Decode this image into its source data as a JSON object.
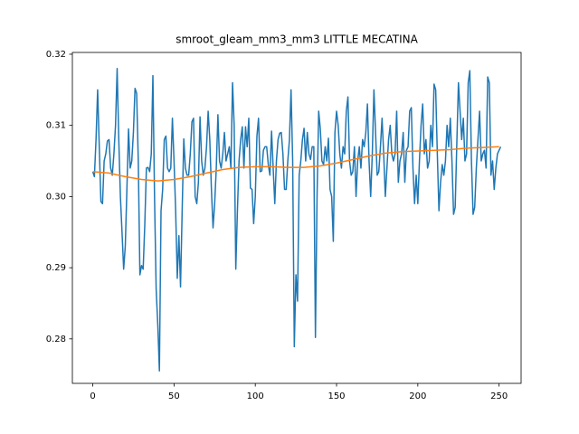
{
  "chart_data": {
    "type": "line",
    "title": "smroot_gleam_mm3_mm3 LITTLE MECATINA",
    "xlim": [
      -12.55,
      263.55
    ],
    "xticks": [
      0,
      50,
      100,
      150,
      200,
      250
    ],
    "ylim": [
      0.27375,
      0.32025
    ],
    "yticks": [
      0.28,
      0.29,
      {
        "value": 0.3,
        "label": "0.30"
      },
      0.31,
      0.32
    ],
    "series": [
      {
        "color": "#1f77b4",
        "values": [
          0.3035,
          0.3028,
          0.308,
          0.315,
          0.307,
          0.2993,
          0.299,
          0.305,
          0.306,
          0.3078,
          0.308,
          0.304,
          0.303,
          0.306,
          0.31,
          0.318,
          0.308,
          0.3,
          0.295,
          0.2898,
          0.293,
          0.301,
          0.3095,
          0.304,
          0.305,
          0.309,
          0.3152,
          0.3145,
          0.305,
          0.289,
          0.2903,
          0.2898,
          0.296,
          0.304,
          0.3041,
          0.3035,
          0.306,
          0.317,
          0.3,
          0.287,
          0.282,
          0.2755,
          0.298,
          0.301,
          0.308,
          0.3085,
          0.304,
          0.3035,
          0.304,
          0.311,
          0.305,
          0.298,
          0.2885,
          0.2945,
          0.2873,
          0.298,
          0.3081,
          0.304,
          0.303,
          0.303,
          0.306,
          0.3105,
          0.311,
          0.3,
          0.299,
          0.302,
          0.3112,
          0.305,
          0.303,
          0.304,
          0.307,
          0.312,
          0.308,
          0.301,
          0.2956,
          0.299,
          0.304,
          0.3115,
          0.305,
          0.304,
          0.306,
          0.309,
          0.305,
          0.306,
          0.307,
          0.304,
          0.316,
          0.31,
          0.2898,
          0.298,
          0.305,
          0.308,
          0.3098,
          0.304,
          0.3098,
          0.307,
          0.311,
          0.3012,
          0.301,
          0.2962,
          0.3,
          0.3085,
          0.311,
          0.3035,
          0.3036,
          0.3065,
          0.307,
          0.307,
          0.3045,
          0.303,
          0.3092,
          0.304,
          0.299,
          0.305,
          0.308,
          0.3089,
          0.309,
          0.306,
          0.301,
          0.301,
          0.305,
          0.308,
          0.315,
          0.305,
          0.2789,
          0.289,
          0.2853,
          0.303,
          0.305,
          0.308,
          0.3096,
          0.305,
          0.309,
          0.306,
          0.3052,
          0.307,
          0.307,
          0.2802,
          0.3,
          0.312,
          0.3095,
          0.305,
          0.3045,
          0.307,
          0.305,
          0.3082,
          0.301,
          0.3,
          0.2937,
          0.309,
          0.312,
          0.31,
          0.306,
          0.304,
          0.307,
          0.306,
          0.312,
          0.314,
          0.305,
          0.303,
          0.3035,
          0.307,
          0.3,
          0.305,
          0.307,
          0.304,
          0.308,
          0.307,
          0.309,
          0.313,
          0.305,
          0.3,
          0.306,
          0.315,
          0.309,
          0.303,
          0.3035,
          0.307,
          0.311,
          0.306,
          0.3,
          0.304,
          0.308,
          0.31,
          0.306,
          0.305,
          0.306,
          0.312,
          0.302,
          0.305,
          0.306,
          0.309,
          0.302,
          0.3065,
          0.307,
          0.312,
          0.3125,
          0.304,
          0.299,
          0.303,
          0.299,
          0.305,
          0.31,
          0.313,
          0.306,
          0.308,
          0.304,
          0.305,
          0.31,
          0.307,
          0.3158,
          0.315,
          0.306,
          0.298,
          0.302,
          0.3045,
          0.303,
          0.305,
          0.31,
          0.307,
          0.311,
          0.305,
          0.2975,
          0.2985,
          0.3075,
          0.316,
          0.312,
          0.308,
          0.311,
          0.305,
          0.306,
          0.316,
          0.3177,
          0.305,
          0.2975,
          0.2985,
          0.304,
          0.308,
          0.312,
          0.305,
          0.306,
          0.3065,
          0.304,
          0.3168,
          0.316,
          0.303,
          0.305,
          0.301,
          0.304,
          0.306,
          0.3065,
          0.307
        ]
      },
      {
        "color": "#ff7f0e",
        "x": [
          0,
          10,
          20,
          30,
          40,
          50,
          60,
          70,
          80,
          90,
          100,
          110,
          120,
          130,
          140,
          150,
          160,
          170,
          180,
          190,
          200,
          210,
          220,
          230,
          240,
          250
        ],
        "values": [
          0.3035,
          0.3033,
          0.3028,
          0.3024,
          0.3022,
          0.3024,
          0.3028,
          0.3033,
          0.3038,
          0.3041,
          0.3042,
          0.3042,
          0.3041,
          0.3041,
          0.3043,
          0.3047,
          0.3052,
          0.3057,
          0.3061,
          0.3063,
          0.3064,
          0.3065,
          0.3066,
          0.3068,
          0.3069,
          0.307
        ]
      }
    ]
  }
}
